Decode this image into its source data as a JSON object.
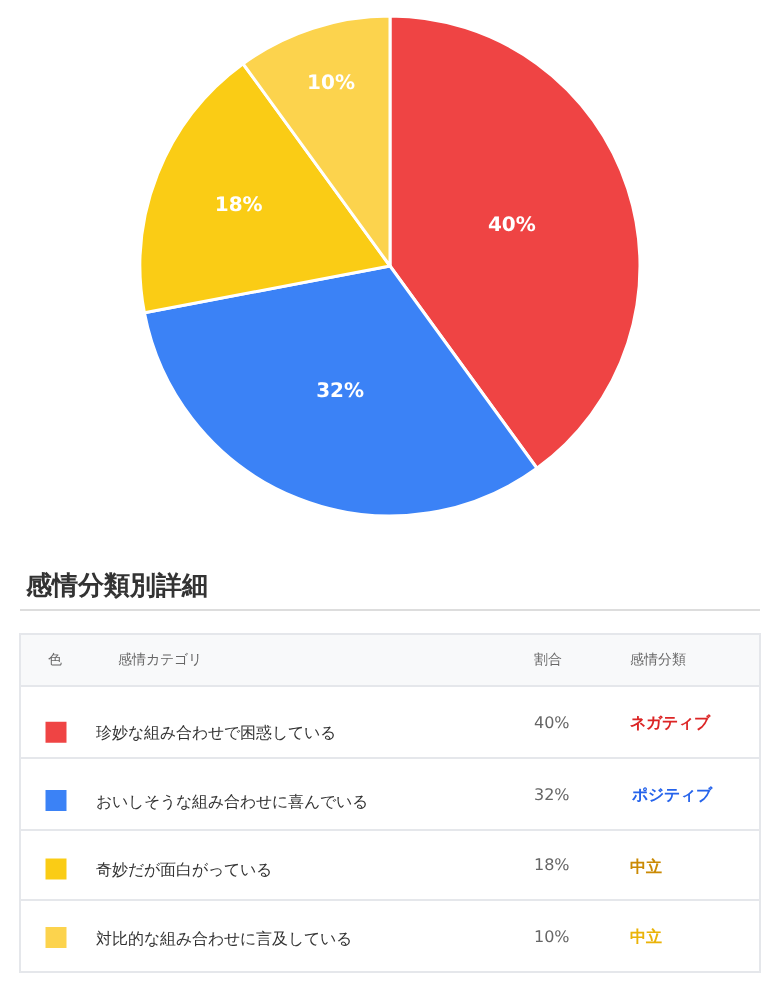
{
  "chart_data": {
    "type": "pie",
    "categories": [
      "珍妙な組み合わせで困惑している",
      "おいしそうな組み合わせに喜んでいる",
      "奇妙だが面白がっている",
      "対比的な組み合わせに言及している"
    ],
    "values": [
      40,
      32,
      18,
      10
    ],
    "value_labels": [
      "40%",
      "32%",
      "18%",
      "10%"
    ],
    "colors": [
      "#ef4444",
      "#3b82f6",
      "#facc15",
      "#fcd34d"
    ],
    "legend": "bottom",
    "annotations": [
      "感情分類別詳細",
      "色",
      "感情カテゴリ",
      "割合",
      "感情分類",
      "ネガティブ",
      "ポジティブ",
      "中立",
      "中立"
    ]
  }
}
